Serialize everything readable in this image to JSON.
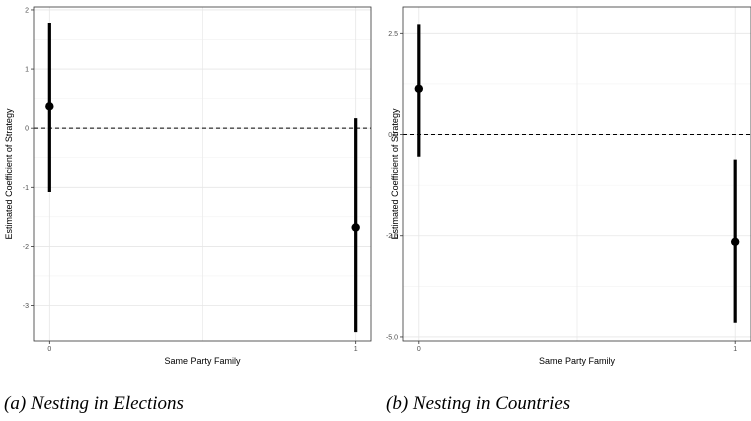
{
  "chart_data": [
    {
      "type": "scatter",
      "caption": "(a) Nesting in Elections",
      "xlabel": "Same Party Family",
      "ylabel": "Estimated Coefficient of Strategy",
      "x_ticks": [
        "0",
        "1"
      ],
      "y_ticks": [
        "2",
        "1",
        "0",
        "-1",
        "-2",
        "-3"
      ],
      "xlim": [
        -0.05,
        1.05
      ],
      "ylim": [
        -3.6,
        2.05
      ],
      "reference_line": 0,
      "grid": true,
      "points": [
        {
          "x": 0,
          "estimate": 0.37,
          "lower": -1.08,
          "upper": 1.78
        },
        {
          "x": 1,
          "estimate": -1.68,
          "lower": -3.45,
          "upper": 0.17
        }
      ]
    },
    {
      "type": "scatter",
      "caption": "(b) Nesting in Countries",
      "xlabel": "Same Party Family",
      "ylabel": "Estimated Coefficient of Strategy",
      "x_ticks": [
        "0",
        "1"
      ],
      "y_ticks": [
        "2.5",
        "0.0",
        "-2.5",
        "-5.0"
      ],
      "xlim": [
        -0.05,
        1.05
      ],
      "ylim": [
        -5.1,
        3.15
      ],
      "reference_line": 0,
      "grid": true,
      "points": [
        {
          "x": 0,
          "estimate": 1.13,
          "lower": -0.55,
          "upper": 2.72
        },
        {
          "x": 1,
          "estimate": -2.65,
          "lower": -4.65,
          "upper": -0.62
        }
      ]
    }
  ]
}
